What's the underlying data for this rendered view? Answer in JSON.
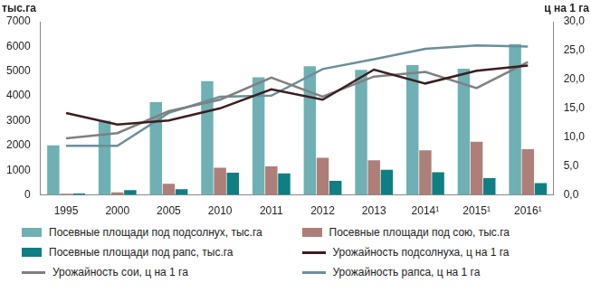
{
  "chart_data": {
    "type": "bar",
    "y_label": "тыс.га",
    "y2_label": "ц на 1 га",
    "categories": [
      "1995",
      "2000",
      "2005",
      "2010",
      "2011",
      "2012",
      "2013",
      "2014¹",
      "2015¹",
      "2016¹"
    ],
    "series": [
      {
        "name": "Посевные площади под подсолнух, тыс.га",
        "type": "bar",
        "color": "#6fb0b4",
        "values": [
          2000,
          3000,
          3750,
          4600,
          4750,
          5200,
          5050,
          5250,
          5100,
          6100
        ]
      },
      {
        "name": "Посевные площади под сою, тыс.га",
        "type": "bar",
        "color": "#ad7f78",
        "values": [
          50,
          100,
          450,
          1100,
          1150,
          1500,
          1400,
          1800,
          2150,
          1850
        ]
      },
      {
        "name": "Посевные площади под рапс, тыс.га",
        "type": "bar",
        "color": "#0f7f84",
        "values": [
          60,
          200,
          230,
          900,
          870,
          570,
          1020,
          920,
          680,
          480
        ]
      },
      {
        "name": "Урожайность подсолнуха, ц на 1 га",
        "type": "line",
        "axis": "y2",
        "color": "#3b1e1e",
        "values": [
          14.2,
          12.2,
          12.9,
          15.0,
          18.3,
          16.5,
          21.7,
          19.3,
          21.5,
          22.4
        ]
      },
      {
        "name": "Урожайность сои, ц на 1 га",
        "type": "line",
        "axis": "y2",
        "color": "#808080",
        "values": [
          9.8,
          10.7,
          14.5,
          16.5,
          20.3,
          17.0,
          20.5,
          21.3,
          18.5,
          23.0
        ]
      },
      {
        "name": "Урожайность рапса, ц на 1 га",
        "type": "line",
        "axis": "y2",
        "color": "#6a8f9b",
        "values": [
          8.5,
          8.5,
          14.2,
          17.0,
          17.2,
          21.8,
          23.5,
          25.3,
          25.9,
          25.7
        ]
      }
    ],
    "ylim": [
      0,
      7000
    ],
    "yticks": [
      0,
      1000,
      2000,
      3000,
      4000,
      5000,
      6000,
      7000
    ],
    "y2lim": [
      0,
      30
    ],
    "y2ticks": [
      {
        "value": 0,
        "label": "0,0"
      },
      {
        "value": 5,
        "label": "5,0"
      },
      {
        "value": 10,
        "label": "10,0"
      },
      {
        "value": 15,
        "label": "15,0"
      },
      {
        "value": 20,
        "label": "20,0"
      },
      {
        "value": 25,
        "label": "25,0"
      },
      {
        "value": 30,
        "label": "30,0"
      }
    ],
    "grid": false,
    "legend": "bottom"
  }
}
